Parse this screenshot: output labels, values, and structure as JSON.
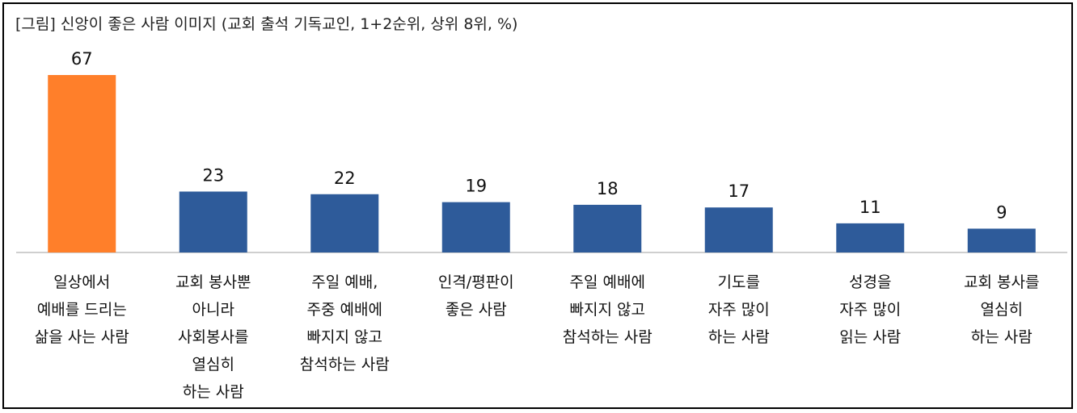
{
  "chart_data": {
    "type": "bar",
    "title": "[그림] 신앙이 좋은 사람 이미지 (교회 출석 기독교인, 1+2순위, 상위 8위, %)",
    "categories": [
      [
        "일상에서",
        "예배를 드리는",
        "삶을 사는 사람"
      ],
      [
        "교회 봉사뿐",
        "아니라",
        "사회봉사를",
        "열심히",
        "하는 사람"
      ],
      [
        "주일 예배,",
        "주중 예배에",
        "빠지지 않고",
        "참석하는 사람"
      ],
      [
        "인격/평판이",
        "좋은 사람"
      ],
      [
        "주일 예배에",
        "빠지지 않고",
        "참석하는 사람"
      ],
      [
        "기도를",
        "자주 많이",
        "하는 사람"
      ],
      [
        "성경을",
        "자주 많이",
        "읽는 사람"
      ],
      [
        "교회 봉사를",
        "열심히",
        "하는 사람"
      ]
    ],
    "values": [
      67,
      23,
      22,
      19,
      18,
      17,
      11,
      9
    ],
    "colors": [
      "#FF7F2A",
      "#2E5B9A",
      "#2E5B9A",
      "#2E5B9A",
      "#2E5B9A",
      "#2E5B9A",
      "#2E5B9A",
      "#2E5B9A"
    ],
    "ylim": [
      0,
      67
    ],
    "grid": false,
    "legend": "none"
  }
}
